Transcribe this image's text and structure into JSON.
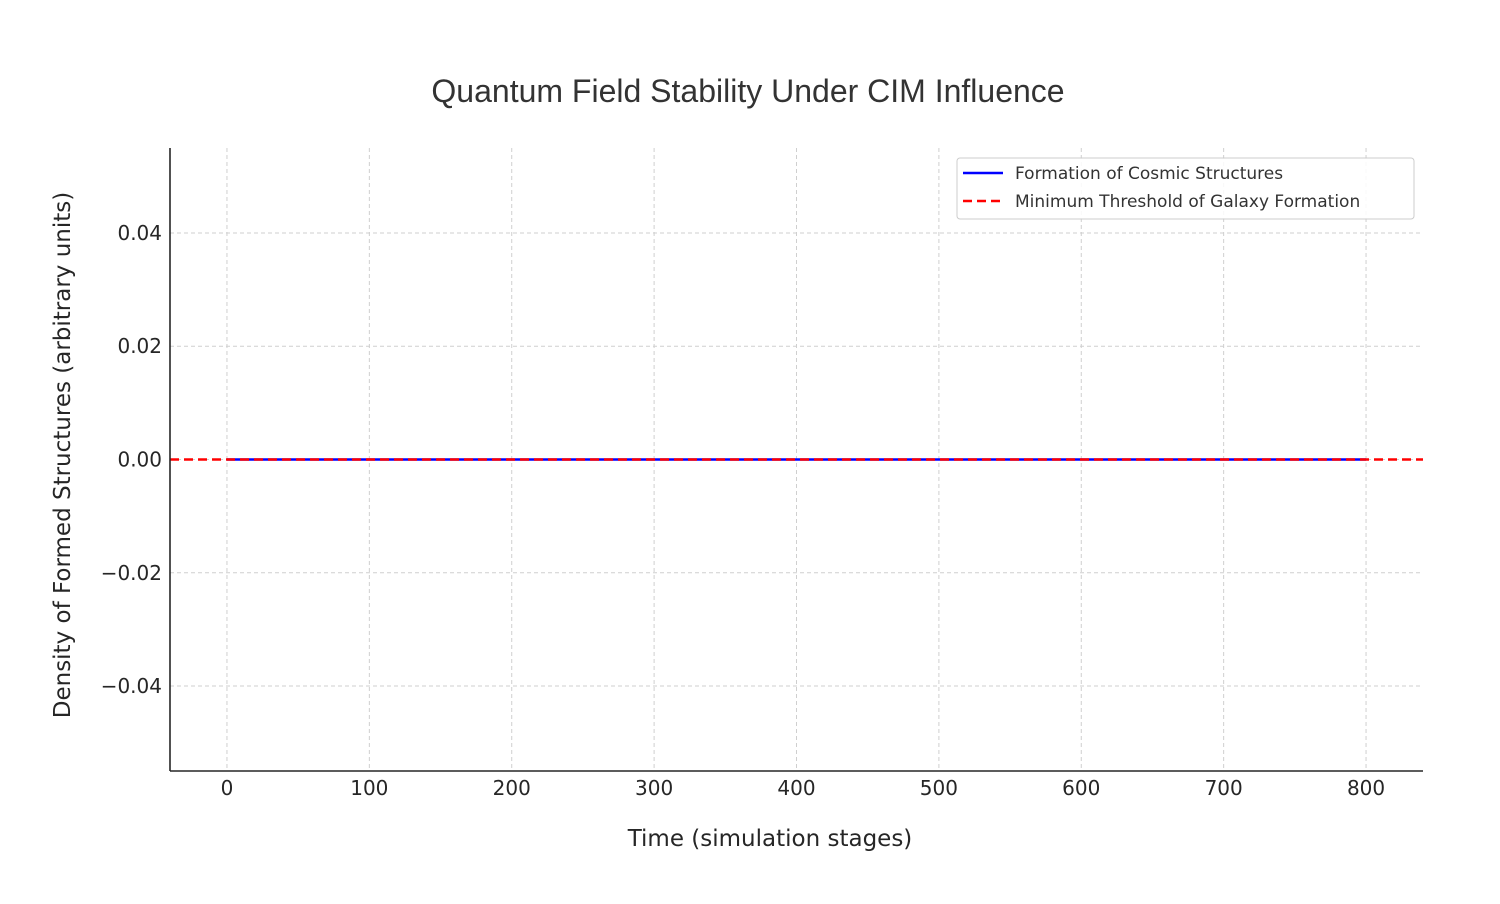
{
  "chart_data": {
    "type": "line",
    "title": "Quantum Field Stability Under CIM Influence",
    "xlabel": "Time (simulation stages)",
    "ylabel": "Density of Formed Structures (arbitrary units)",
    "xlim": [
      -40,
      840
    ],
    "ylim": [
      -0.055,
      0.055
    ],
    "xticks": [
      0,
      100,
      200,
      300,
      400,
      500,
      600,
      700,
      800
    ],
    "xtick_labels": [
      "0",
      "100",
      "200",
      "300",
      "400",
      "500",
      "600",
      "700",
      "800"
    ],
    "yticks": [
      0.04,
      0.02,
      0.0,
      -0.02,
      -0.04
    ],
    "ytick_labels": [
      "0.04",
      "0.02",
      "0.00",
      "−0.02",
      "−0.04"
    ],
    "grid": true,
    "legend_position": "top-right",
    "series": [
      {
        "name": "Formation of Cosmic Structures",
        "color": "#0000ff",
        "style": "solid",
        "x": [
          0,
          800
        ],
        "y": [
          0,
          0
        ]
      },
      {
        "name": "Minimum Threshold of Galaxy Formation",
        "color": "#ff0000",
        "style": "dashed",
        "type": "hline",
        "y": 0
      }
    ]
  }
}
